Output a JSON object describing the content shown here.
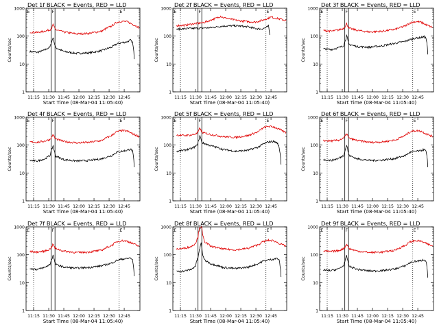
{
  "colors": {
    "events": "#000000",
    "lld": "#e00000",
    "axes": "#000000",
    "background": "#ffffff"
  },
  "chart_data": [
    {
      "type": "line",
      "title": "Det 1f BLACK = Events, RED = LLD",
      "ylabel": "Counts/sec",
      "xlabel": "Start Time (08-Mar-04 11:05:40)",
      "xlim": [
        700,
        1605
      ],
      "ylim": [
        1,
        1000
      ],
      "yscale": "log",
      "xticks": [
        "11:15",
        "11:30",
        "11:45",
        "12:00",
        "12:15",
        "12:30",
        "12:45"
      ],
      "yticks": [
        "1",
        "10",
        "100",
        "1000"
      ],
      "markers": [
        "E",
        "F",
        "E"
      ],
      "vlines_dotted": [
        760,
        1440
      ],
      "vlines_solid": [
        900,
        930
      ],
      "series": [
        {
          "name": "BLACK = Events",
          "x": [
            730,
            790,
            850,
            890,
            905,
            915,
            925,
            935,
            1000,
            1100,
            1200,
            1300,
            1380,
            1420,
            1460,
            1500,
            1530,
            1545,
            1560
          ],
          "values": [
            28,
            26,
            32,
            40,
            65,
            90,
            55,
            38,
            28,
            24,
            25,
            30,
            40,
            52,
            58,
            62,
            72,
            60,
            15
          ]
        },
        {
          "name": "RED = LLD",
          "x": [
            730,
            790,
            850,
            890,
            905,
            915,
            925,
            935,
            1000,
            1100,
            1200,
            1300,
            1380,
            1420,
            1460,
            1500,
            1550,
            1600
          ],
          "values": [
            140,
            135,
            150,
            170,
            200,
            260,
            200,
            170,
            140,
            120,
            125,
            150,
            230,
            310,
            340,
            330,
            260,
            200
          ]
        }
      ]
    },
    {
      "type": "line",
      "title": "Det 2f BLACK = Events, RED = LLD",
      "ylabel": "Counts/sec",
      "xlabel": "Start Time (08-Mar-04 11:05:40)",
      "xlim": [
        700,
        1605
      ],
      "ylim": [
        1,
        1000
      ],
      "yscale": "log",
      "xticks": [
        "11:15",
        "11:30",
        "11:45",
        "12:00",
        "12:15",
        "12:30",
        "12:45"
      ],
      "yticks": [
        "1",
        "10",
        "100",
        "1000"
      ],
      "markers": [
        "E",
        "F",
        "E"
      ],
      "vlines_dotted": [
        760,
        1440
      ],
      "vlines_solid": [
        900,
        930
      ],
      "series": [
        {
          "name": "BLACK = Events",
          "x": [
            730,
            800,
            880,
            940,
            1000,
            1100,
            1200,
            1300,
            1350,
            1400,
            1440,
            1460,
            1470
          ],
          "values": [
            175,
            185,
            190,
            195,
            200,
            230,
            235,
            215,
            190,
            180,
            200,
            230,
            110
          ]
        },
        {
          "name": "RED = LLD",
          "x": [
            730,
            800,
            870,
            940,
            1000,
            1050,
            1080,
            1100,
            1200,
            1300,
            1360,
            1420,
            1480,
            1560,
            1600
          ],
          "values": [
            240,
            245,
            280,
            300,
            370,
            450,
            520,
            460,
            370,
            330,
            320,
            380,
            480,
            400,
            360
          ]
        }
      ]
    },
    {
      "type": "line",
      "title": "Det 3f BLACK = Events, RED = LLD",
      "ylabel": "Counts/sec",
      "xlabel": "Start Time (08-Mar-04 11:05:40)",
      "xlim": [
        700,
        1605
      ],
      "ylim": [
        1,
        1000
      ],
      "yscale": "log",
      "xticks": [
        "11:15",
        "11:30",
        "11:45",
        "12:00",
        "12:15",
        "12:30",
        "12:45"
      ],
      "yticks": [
        "1",
        "10",
        "100",
        "1000"
      ],
      "markers": [
        "E",
        "F",
        "E"
      ],
      "vlines_dotted": [
        760,
        1440
      ],
      "vlines_solid": [
        900,
        930
      ],
      "series": [
        {
          "name": "BLACK = Events",
          "x": [
            730,
            790,
            850,
            890,
            905,
            915,
            925,
            935,
            1000,
            1100,
            1200,
            1300,
            1380,
            1420,
            1460,
            1500,
            1530,
            1545,
            1560
          ],
          "values": [
            35,
            33,
            38,
            45,
            70,
            105,
            65,
            50,
            42,
            40,
            45,
            55,
            65,
            75,
            85,
            88,
            95,
            85,
            22
          ]
        },
        {
          "name": "RED = LLD",
          "x": [
            730,
            790,
            850,
            890,
            905,
            915,
            925,
            935,
            1000,
            1100,
            1200,
            1300,
            1380,
            1420,
            1460,
            1500,
            1550,
            1600
          ],
          "values": [
            160,
            150,
            165,
            190,
            230,
            280,
            220,
            190,
            160,
            140,
            150,
            175,
            230,
            300,
            330,
            320,
            250,
            200
          ]
        }
      ]
    },
    {
      "type": "line",
      "title": "Det 4f BLACK = Events, RED = LLD",
      "ylabel": "Counts/sec",
      "xlabel": "Start Time (08-Mar-04 11:05:40)",
      "xlim": [
        700,
        1605
      ],
      "ylim": [
        1,
        1000
      ],
      "yscale": "log",
      "xticks": [
        "11:15",
        "11:30",
        "11:45",
        "12:00",
        "12:15",
        "12:30",
        "12:45"
      ],
      "yticks": [
        "1",
        "10",
        "100",
        "1000"
      ],
      "markers": [
        "E",
        "F",
        "E"
      ],
      "vlines_dotted": [
        760,
        1440
      ],
      "vlines_solid": [
        900,
        930
      ],
      "series": [
        {
          "name": "BLACK = Events",
          "x": [
            730,
            790,
            850,
            890,
            905,
            915,
            925,
            935,
            1000,
            1100,
            1200,
            1300,
            1380,
            1420,
            1460,
            1500,
            1530,
            1545,
            1560
          ],
          "values": [
            28,
            27,
            32,
            42,
            70,
            95,
            58,
            40,
            30,
            27,
            28,
            32,
            42,
            55,
            60,
            65,
            72,
            62,
            16
          ]
        },
        {
          "name": "RED = LLD",
          "x": [
            730,
            790,
            850,
            890,
            905,
            915,
            925,
            935,
            1000,
            1100,
            1200,
            1300,
            1380,
            1420,
            1460,
            1500,
            1550,
            1600
          ],
          "values": [
            130,
            125,
            140,
            160,
            200,
            240,
            190,
            165,
            135,
            120,
            125,
            145,
            220,
            300,
            330,
            320,
            250,
            200
          ]
        }
      ]
    },
    {
      "type": "line",
      "title": "Det 5f BLACK = Events, RED = LLD",
      "ylabel": "Counts/sec",
      "xlabel": "Start Time (08-Mar-04 11:05:40)",
      "xlim": [
        700,
        1605
      ],
      "ylim": [
        1,
        1000
      ],
      "yscale": "log",
      "xticks": [
        "11:15",
        "11:30",
        "11:45",
        "12:00",
        "12:15",
        "12:30",
        "12:45"
      ],
      "yticks": [
        "1",
        "10",
        "100",
        "1000"
      ],
      "markers": [
        "E",
        "F",
        "E"
      ],
      "vlines_dotted": [
        760,
        1440
      ],
      "vlines_solid": [
        900,
        930
      ],
      "series": [
        {
          "name": "BLACK = Events",
          "x": [
            730,
            790,
            850,
            890,
            905,
            915,
            925,
            935,
            1000,
            1100,
            1200,
            1300,
            1380,
            1420,
            1460,
            1500,
            1530,
            1545,
            1560
          ],
          "values": [
            60,
            65,
            75,
            95,
            140,
            220,
            150,
            120,
            95,
            70,
            60,
            65,
            85,
            110,
            130,
            135,
            120,
            80,
            20
          ]
        },
        {
          "name": "RED = LLD",
          "x": [
            730,
            790,
            850,
            890,
            905,
            915,
            925,
            935,
            1000,
            1100,
            1200,
            1300,
            1380,
            1420,
            1460,
            1500,
            1550,
            1600
          ],
          "values": [
            230,
            220,
            230,
            260,
            320,
            420,
            320,
            280,
            240,
            200,
            190,
            220,
            300,
            420,
            470,
            450,
            360,
            280
          ]
        }
      ]
    },
    {
      "type": "line",
      "title": "Det 6f BLACK = Events, RED = LLD",
      "ylabel": "Counts/sec",
      "xlabel": "Start Time (08-Mar-04 11:05:40)",
      "xlim": [
        700,
        1605
      ],
      "ylim": [
        1,
        1000
      ],
      "yscale": "log",
      "xticks": [
        "11:15",
        "11:30",
        "11:45",
        "12:00",
        "12:15",
        "12:30",
        "12:45"
      ],
      "yticks": [
        "1",
        "10",
        "100",
        "1000"
      ],
      "markers": [
        "E",
        "F",
        "E"
      ],
      "vlines_dotted": [
        760,
        1440
      ],
      "vlines_solid": [
        900,
        930
      ],
      "series": [
        {
          "name": "BLACK = Events",
          "x": [
            730,
            790,
            850,
            890,
            905,
            915,
            925,
            935,
            1000,
            1100,
            1200,
            1300,
            1380,
            1420,
            1460,
            1500,
            1530,
            1545,
            1560
          ],
          "values": [
            30,
            28,
            33,
            42,
            70,
            100,
            60,
            42,
            32,
            28,
            29,
            33,
            42,
            55,
            60,
            62,
            70,
            60,
            16
          ]
        },
        {
          "name": "RED = LLD",
          "x": [
            730,
            790,
            850,
            890,
            905,
            915,
            925,
            935,
            1000,
            1100,
            1200,
            1300,
            1380,
            1420,
            1460,
            1500,
            1550,
            1600
          ],
          "values": [
            145,
            140,
            150,
            175,
            215,
            260,
            205,
            175,
            145,
            125,
            130,
            150,
            220,
            300,
            330,
            320,
            250,
            200
          ]
        }
      ]
    },
    {
      "type": "line",
      "title": "Det 7f BLACK = Events, RED = LLD",
      "ylabel": "Counts/sec",
      "xlabel": "Start Time (08-Mar-04 11:05:40)",
      "xlim": [
        700,
        1605
      ],
      "ylim": [
        1,
        1000
      ],
      "yscale": "log",
      "xticks": [
        "11:15",
        "11:30",
        "11:45",
        "12:00",
        "12:15",
        "12:30",
        "12:45"
      ],
      "yticks": [
        "1",
        "10",
        "100",
        "1000"
      ],
      "markers": [
        "E",
        "F",
        "E"
      ],
      "vlines_dotted": [
        760,
        1440
      ],
      "vlines_solid": [
        900,
        930
      ],
      "series": [
        {
          "name": "BLACK = Events",
          "x": [
            730,
            790,
            850,
            890,
            905,
            915,
            925,
            935,
            1000,
            1100,
            1200,
            1300,
            1380,
            1420,
            1460,
            1500,
            1530,
            1545,
            1560
          ],
          "values": [
            32,
            30,
            35,
            45,
            70,
            95,
            60,
            45,
            36,
            33,
            35,
            40,
            50,
            62,
            70,
            72,
            78,
            65,
            17
          ]
        },
        {
          "name": "RED = LLD",
          "x": [
            730,
            790,
            850,
            890,
            905,
            915,
            925,
            935,
            1000,
            1100,
            1200,
            1300,
            1380,
            1420,
            1460,
            1500,
            1550,
            1600
          ],
          "values": [
            130,
            125,
            135,
            160,
            200,
            240,
            190,
            165,
            135,
            120,
            125,
            145,
            215,
            290,
            320,
            310,
            250,
            200
          ]
        }
      ]
    },
    {
      "type": "line",
      "title": "Det 8f BLACK = Events, RED = LLD",
      "ylabel": "Counts/sec",
      "xlabel": "Start Time (08-Mar-04 11:05:40)",
      "xlim": [
        700,
        1605
      ],
      "ylim": [
        1,
        1000
      ],
      "yscale": "log",
      "xticks": [
        "11:15",
        "11:30",
        "11:45",
        "12:00",
        "12:15",
        "12:30",
        "12:45"
      ],
      "yticks": [
        "1",
        "10",
        "100",
        "1000"
      ],
      "markers": [
        "E",
        "F",
        "E"
      ],
      "vlines_dotted": [
        760,
        1440
      ],
      "vlines_solid": [
        900,
        930
      ],
      "series": [
        {
          "name": "BLACK = Events",
          "x": [
            730,
            790,
            850,
            880,
            900,
            915,
            925,
            935,
            950,
            1000,
            1100,
            1200,
            1300,
            1380,
            1420,
            1460,
            1500,
            1530,
            1545,
            1560
          ],
          "values": [
            25,
            26,
            30,
            40,
            80,
            170,
            260,
            110,
            65,
            48,
            35,
            32,
            36,
            48,
            60,
            65,
            70,
            75,
            62,
            16
          ]
        },
        {
          "name": "RED = LLD",
          "x": [
            730,
            790,
            850,
            880,
            900,
            912,
            920,
            928,
            936,
            950,
            1000,
            1100,
            1200,
            1300,
            1380,
            1420,
            1460,
            1500,
            1550,
            1600
          ],
          "values": [
            160,
            170,
            200,
            260,
            420,
            1000,
            1000,
            1000,
            520,
            300,
            200,
            160,
            150,
            170,
            230,
            300,
            330,
            320,
            250,
            200
          ]
        }
      ]
    },
    {
      "type": "line",
      "title": "Det 9f BLACK = Events, RED = LLD",
      "ylabel": "Counts/sec",
      "xlabel": "Start Time (08-Mar-04 11:05:40)",
      "xlim": [
        700,
        1605
      ],
      "ylim": [
        1,
        1000
      ],
      "yscale": "log",
      "xticks": [
        "11:15",
        "11:30",
        "11:45",
        "12:00",
        "12:15",
        "12:30",
        "12:45"
      ],
      "yticks": [
        "1",
        "10",
        "100",
        "1000"
      ],
      "markers": [
        "E",
        "F",
        "E"
      ],
      "vlines_dotted": [
        760,
        1440
      ],
      "vlines_solid": [
        900,
        930
      ],
      "series": [
        {
          "name": "BLACK = Events",
          "x": [
            730,
            790,
            850,
            890,
            905,
            915,
            925,
            935,
            1000,
            1100,
            1200,
            1300,
            1380,
            1420,
            1460,
            1500,
            1530,
            1545,
            1560
          ],
          "values": [
            28,
            27,
            31,
            40,
            65,
            90,
            55,
            38,
            30,
            26,
            27,
            31,
            40,
            52,
            58,
            60,
            68,
            58,
            15
          ]
        },
        {
          "name": "RED = LLD",
          "x": [
            730,
            790,
            850,
            890,
            905,
            915,
            925,
            935,
            1000,
            1100,
            1200,
            1300,
            1380,
            1420,
            1460,
            1500,
            1550,
            1600
          ],
          "values": [
            135,
            130,
            140,
            165,
            200,
            245,
            195,
            165,
            135,
            120,
            125,
            145,
            215,
            290,
            320,
            310,
            250,
            200
          ]
        }
      ]
    }
  ]
}
